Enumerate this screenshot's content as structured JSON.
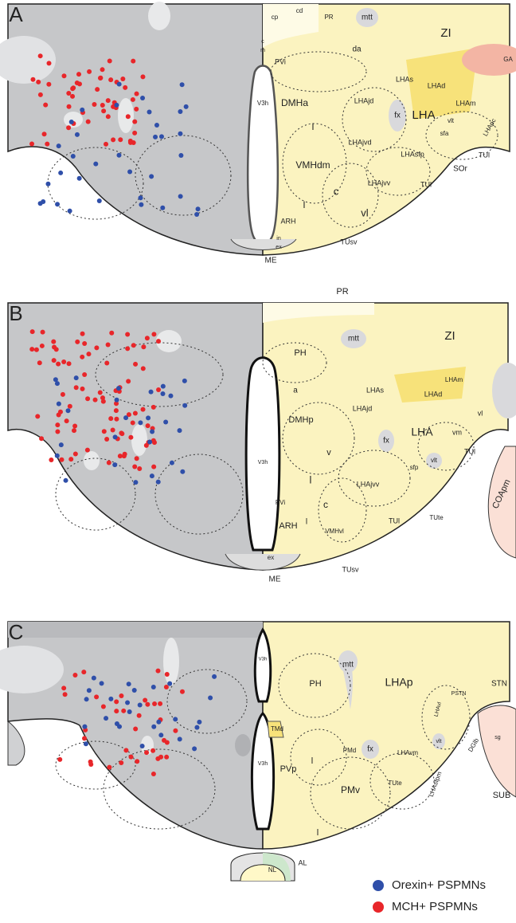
{
  "panels": [
    {
      "letter": "A",
      "labels": [
        "cp",
        "cd",
        "PR",
        "mtt",
        "c",
        "m",
        "da",
        "ZI",
        "PVi",
        "V3h",
        "LHAs",
        "LHAd",
        "DMHa",
        "LHAjd",
        "fx",
        "LHA",
        "LHAm",
        "l",
        "vlt",
        "sfa",
        "LHApc",
        "LHAjvd",
        "VMHdm",
        "LHAsfp",
        "TUl",
        "SOr",
        "c",
        "LHAjvv",
        "TUl",
        "l",
        "vl",
        "ARH",
        "in",
        "ex",
        "TUsv",
        "ME",
        "GA"
      ]
    },
    {
      "letter": "B",
      "labels": [
        "PR",
        "mtt",
        "PH",
        "ZI",
        "LHAm",
        "LHAd",
        "LHAs",
        "a",
        "DMHp",
        "LHAjd",
        "fx",
        "LHA",
        "vm",
        "vl",
        "v",
        "vlt",
        "TUl",
        "sfp",
        "V3h",
        "l",
        "LHAjvv",
        "PVi",
        "c",
        "ARH",
        "l",
        "VMHvl",
        "TUl",
        "TUte",
        "COApm",
        "ex",
        "ME",
        "TUsv"
      ]
    },
    {
      "letter": "C",
      "labels": [
        "V3h",
        "mtt",
        "PH",
        "LHAp",
        "STN",
        "PSTN",
        "LHAvl",
        "TMd",
        "PMd",
        "fx",
        "LHAvm",
        "vlt",
        "DGlb",
        "sg",
        "V3h",
        "PVp",
        "l",
        "PMv",
        "TUte",
        "LHAsfpm",
        "SUB",
        "l",
        "NL",
        "AL"
      ]
    }
  ],
  "legend": {
    "items": [
      "Orexin+ PSPMNs",
      "MCH+ PSPMNs"
    ]
  }
}
